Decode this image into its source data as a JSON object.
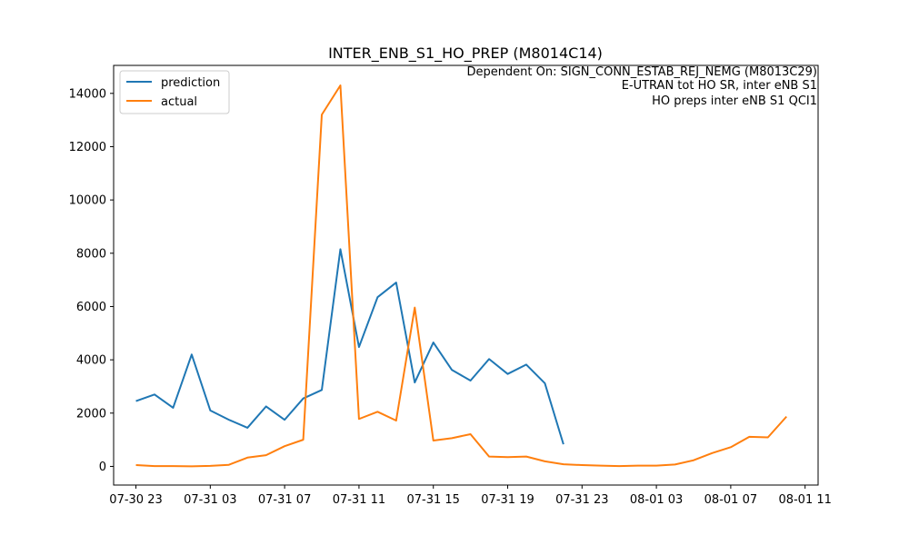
{
  "chart_data": {
    "type": "line",
    "title": "INTER_ENB_S1_HO_PREP (M8014C14)",
    "annotation_lines": [
      "Dependent On: SIGN_CONN_ESTAB_REJ_NEMG (M8013C29)",
      "E-UTRAN tot HO SR, inter eNB S1",
      "HO preps inter eNB S1 QCI1"
    ],
    "xlabel": "",
    "ylabel": "",
    "x_start": "07-30 23:00",
    "x_step_hours": 1,
    "xlim_hours": [
      -1.2,
      36.7
    ],
    "ylim": [
      -700,
      15050
    ],
    "x_ticks": [
      {
        "hour": 0,
        "label": "07-30 23"
      },
      {
        "hour": 4,
        "label": "07-31 03"
      },
      {
        "hour": 8,
        "label": "07-31 07"
      },
      {
        "hour": 12,
        "label": "07-31 11"
      },
      {
        "hour": 16,
        "label": "07-31 15"
      },
      {
        "hour": 20,
        "label": "07-31 19"
      },
      {
        "hour": 24,
        "label": "07-31 23"
      },
      {
        "hour": 28,
        "label": "08-01 03"
      },
      {
        "hour": 32,
        "label": "08-01 07"
      },
      {
        "hour": 36,
        "label": "08-01 11"
      }
    ],
    "y_ticks": [
      0,
      2000,
      4000,
      6000,
      8000,
      10000,
      12000,
      14000
    ],
    "legend_position": "upper-left",
    "grid": false,
    "series": [
      {
        "name": "prediction",
        "color": "#1f77b4",
        "values": [
          2450,
          2700,
          2200,
          4200,
          2100,
          1750,
          1450,
          2250,
          1750,
          2550,
          2870,
          8150,
          4480,
          6350,
          6900,
          3150,
          4650,
          3620,
          3220,
          4030,
          3470,
          3820,
          3120,
          830
        ]
      },
      {
        "name": "actual",
        "color": "#ff7f0e",
        "values": [
          50,
          10,
          10,
          5,
          20,
          60,
          330,
          420,
          760,
          1000,
          13200,
          14300,
          1780,
          2050,
          1720,
          5960,
          970,
          1060,
          1210,
          370,
          350,
          370,
          190,
          80,
          50,
          30,
          10,
          30,
          30,
          70,
          230,
          500,
          720,
          1110,
          1090,
          1870
        ]
      }
    ]
  }
}
